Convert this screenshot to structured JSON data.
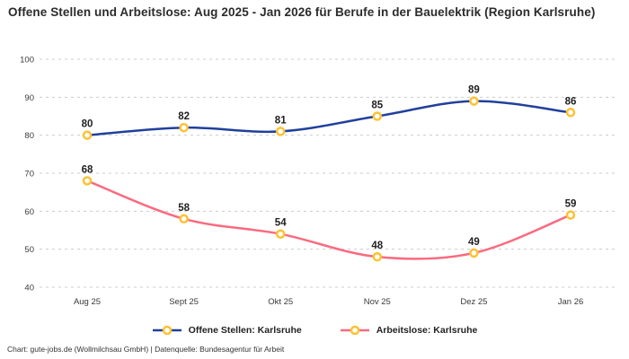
{
  "title": "Offene Stellen und Arbeitslose: Aug 2025 - Jan 2026 für Berufe in der Bauelektrik (Region Karlsruhe)",
  "footer": "Chart: gute-jobs.de (Wollmilchsau GmbH) | Datenquelle: Bundesagentur für Arbeit",
  "chart_data": {
    "type": "line",
    "categories": [
      "Aug 25",
      "Sept 25",
      "Okt 25",
      "Nov 25",
      "Dez 25",
      "Jan 26"
    ],
    "series": [
      {
        "name": "Offene Stellen: Karlsruhe",
        "values": [
          80,
          82,
          81,
          85,
          89,
          86
        ],
        "color": "#20409c"
      },
      {
        "name": "Arbeitslose: Karlsruhe",
        "values": [
          68,
          58,
          54,
          48,
          49,
          59
        ],
        "color": "#fa6a80"
      }
    ],
    "title": "Offene Stellen und Arbeitslose: Aug 2025 - Jan 2026 für Berufe in der Bauelektrik (Region Karlsruhe)",
    "xlabel": "",
    "ylabel": "",
    "ylim": [
      40,
      100
    ],
    "yticks": [
      40,
      50,
      60,
      70,
      80,
      90,
      100
    ],
    "grid": "horizontal-dashed",
    "gridline_color": "#cccccc",
    "tick_label_color": "#3a3a3a",
    "data_label_color": "#1f1f1f",
    "legend_position": "bottom",
    "marker": {
      "shape": "circle",
      "stroke": "#fcc233",
      "fill": "#ffffff"
    }
  }
}
